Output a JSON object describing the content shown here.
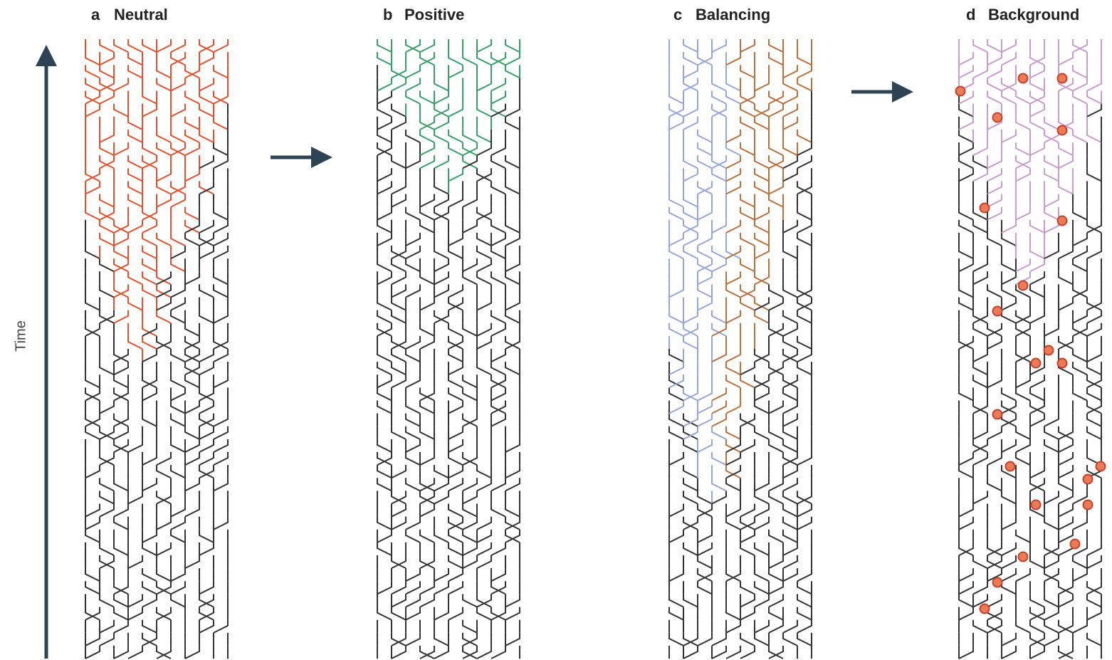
{
  "axis_label": "Time",
  "panels": [
    {
      "letter": "a",
      "label": "Neutral"
    },
    {
      "letter": "b",
      "label": "Positive"
    },
    {
      "letter": "c",
      "label": "Balancing"
    },
    {
      "letter": "d",
      "label": "Background"
    }
  ]
}
